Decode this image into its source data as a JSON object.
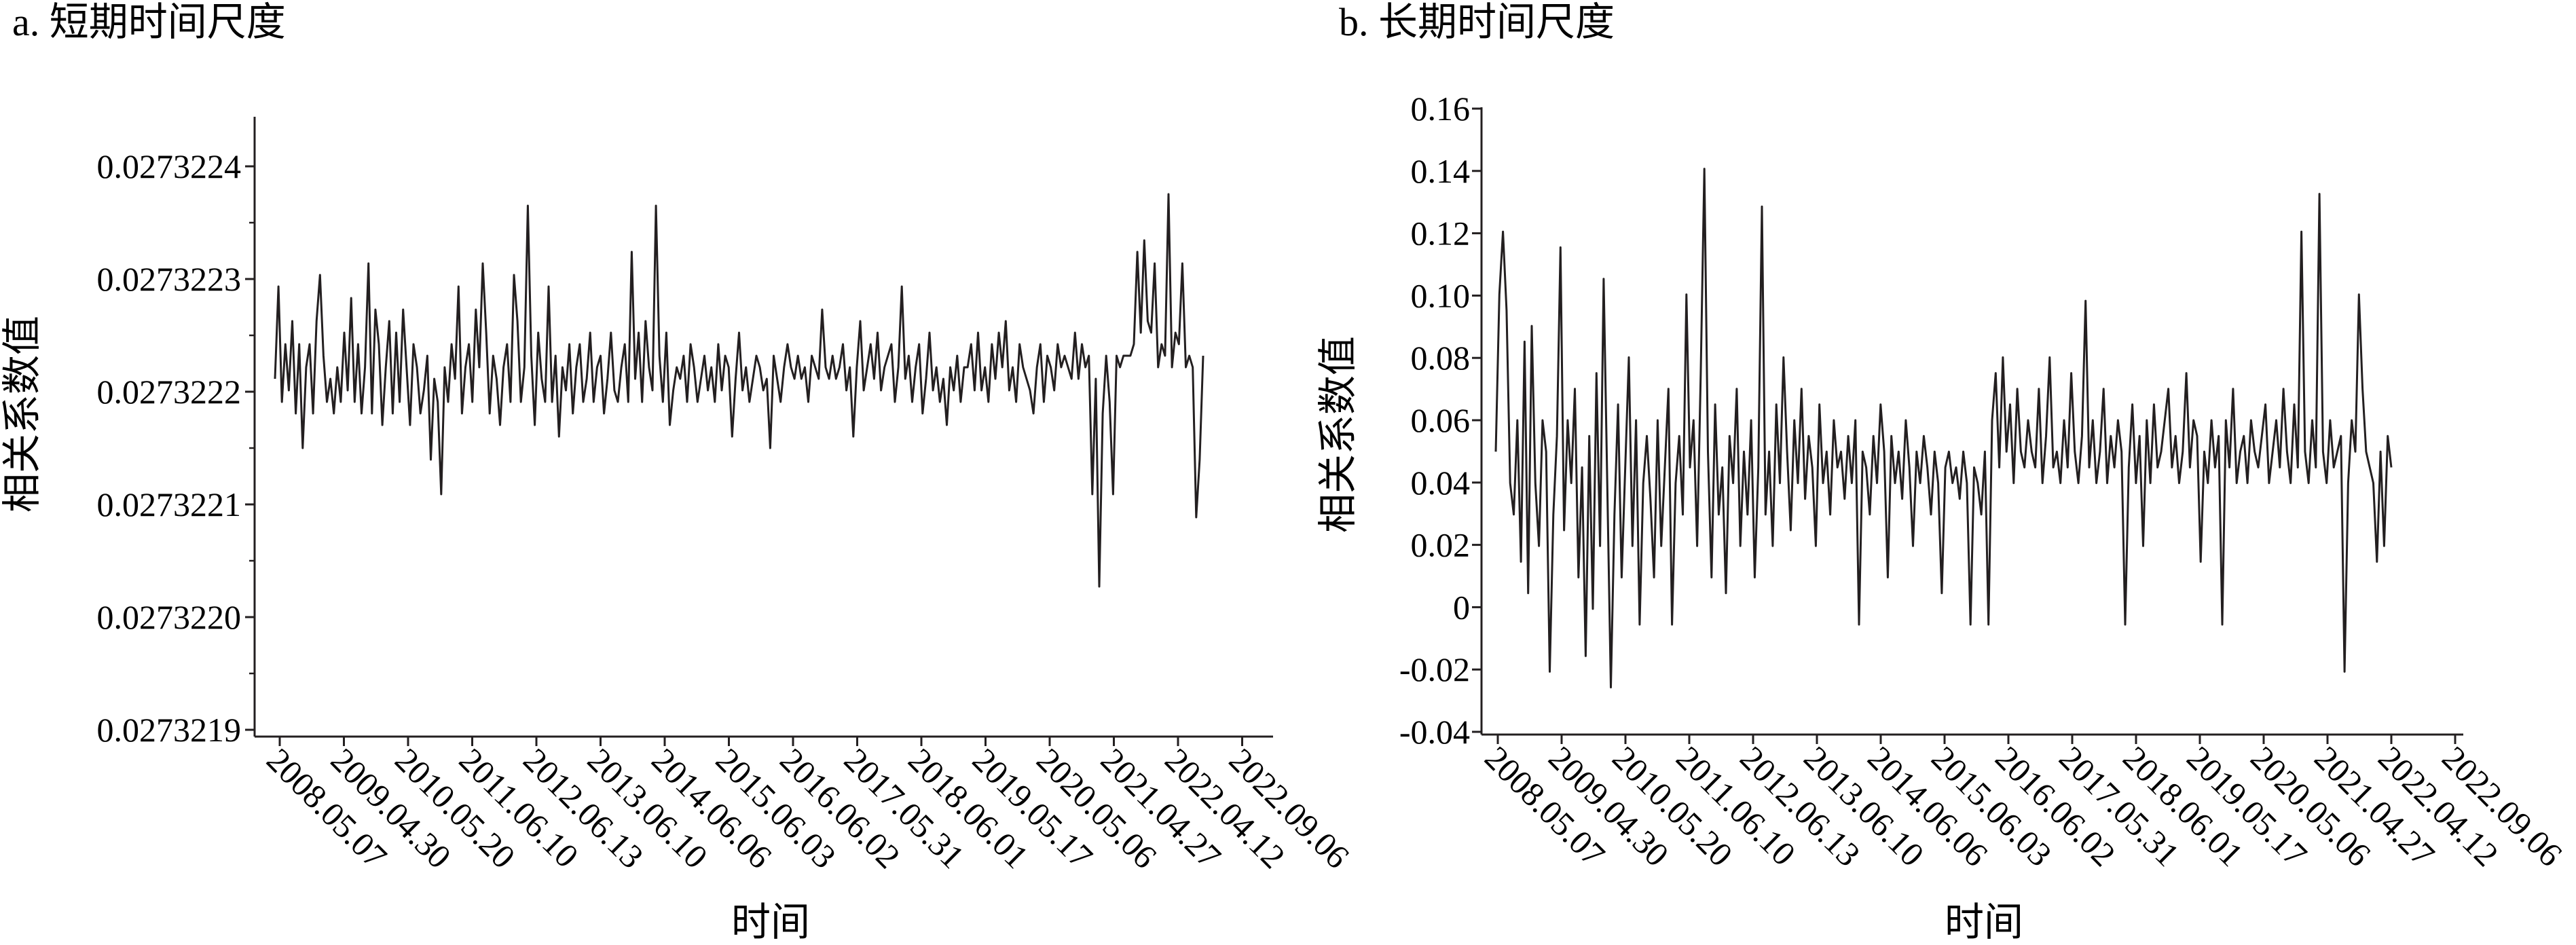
{
  "chart_data": [
    {
      "type": "line",
      "title": "a. 短期时间尺度",
      "xlabel": "时间",
      "ylabel": "相关系数值",
      "ylim": [
        0.0273219,
        0.02732245
      ],
      "yticks": [
        "0.0273219",
        "0.0273220",
        "0.0273221",
        "0.0273222",
        "0.0273223",
        "0.0273224"
      ],
      "x_ticks": [
        "2008.05.07",
        "2009.04.30",
        "2010.05.20",
        "2011.06.10",
        "2012.06.13",
        "2013.06.10",
        "2014.06.06",
        "2015.06.03",
        "2016.06.02",
        "2017.05.31",
        "2018.06.01",
        "2019.05.17",
        "2020.05.06",
        "2021.04.27",
        "2022.04.12",
        "2022.09.06"
      ],
      "grid": false,
      "line_color": "#231f20",
      "series": [
        {
          "values": [
            0.02732221,
            0.02732229,
            0.02732219,
            0.02732224,
            0.0273222,
            0.02732226,
            0.02732218,
            0.02732224,
            0.02732215,
            0.02732222,
            0.02732224,
            0.02732218,
            0.02732226,
            0.0273223,
            0.02732223,
            0.02732219,
            0.02732221,
            0.02732218,
            0.02732222,
            0.02732219,
            0.02732225,
            0.0273222,
            0.02732228,
            0.02732219,
            0.02732224,
            0.02732218,
            0.02732222,
            0.02732231,
            0.02732218,
            0.02732227,
            0.02732224,
            0.02732217,
            0.02732222,
            0.02732226,
            0.02732218,
            0.02732225,
            0.02732219,
            0.02732227,
            0.02732222,
            0.02732217,
            0.02732224,
            0.02732222,
            0.02732218,
            0.0273222,
            0.02732223,
            0.02732214,
            0.02732221,
            0.02732219,
            0.02732211,
            0.02732222,
            0.02732219,
            0.02732224,
            0.02732221,
            0.02732229,
            0.02732218,
            0.02732222,
            0.02732224,
            0.02732219,
            0.02732227,
            0.02732222,
            0.02732231,
            0.02732225,
            0.02732218,
            0.02732223,
            0.02732221,
            0.02732217,
            0.02732222,
            0.02732224,
            0.02732219,
            0.0273223,
            0.02732226,
            0.02732219,
            0.02732222,
            0.02732236,
            0.02732223,
            0.02732217,
            0.02732225,
            0.02732221,
            0.02732219,
            0.02732229,
            0.02732219,
            0.02732223,
            0.02732216,
            0.02732222,
            0.0273222,
            0.02732224,
            0.02732218,
            0.02732222,
            0.02732224,
            0.02732219,
            0.02732221,
            0.02732225,
            0.02732219,
            0.02732222,
            0.02732223,
            0.02732218,
            0.02732221,
            0.02732225,
            0.0273222,
            0.02732219,
            0.02732222,
            0.02732224,
            0.02732219,
            0.02732232,
            0.02732221,
            0.02732225,
            0.02732219,
            0.02732226,
            0.02732222,
            0.0273222,
            0.02732236,
            0.02732223,
            0.02732219,
            0.02732225,
            0.02732217,
            0.0273222,
            0.02732222,
            0.02732221,
            0.02732223,
            0.02732219,
            0.02732224,
            0.02732222,
            0.02732219,
            0.02732221,
            0.02732223,
            0.0273222,
            0.02732222,
            0.02732219,
            0.02732224,
            0.0273222,
            0.02732223,
            0.02732222,
            0.02732216,
            0.02732221,
            0.02732225,
            0.0273222,
            0.02732222,
            0.02732219,
            0.02732221,
            0.02732223,
            0.02732222,
            0.0273222,
            0.02732221,
            0.02732215,
            0.02732223,
            0.02732221,
            0.02732219,
            0.02732222,
            0.02732224,
            0.02732222,
            0.02732221,
            0.02732223,
            0.02732221,
            0.02732222,
            0.02732219,
            0.02732223,
            0.02732222,
            0.02732221,
            0.02732227,
            0.02732222,
            0.02732221,
            0.02732223,
            0.02732221,
            0.02732222,
            0.02732224,
            0.0273222,
            0.02732222,
            0.02732216,
            0.02732222,
            0.02732226,
            0.0273222,
            0.02732222,
            0.02732224,
            0.02732221,
            0.02732225,
            0.0273222,
            0.02732222,
            0.02732223,
            0.02732224,
            0.02732219,
            0.02732222,
            0.02732229,
            0.02732221,
            0.02732223,
            0.02732219,
            0.02732222,
            0.02732224,
            0.02732218,
            0.02732221,
            0.02732225,
            0.0273222,
            0.02732222,
            0.02732219,
            0.02732221,
            0.02732217,
            0.02732222,
            0.0273222,
            0.02732223,
            0.02732219,
            0.02732222,
            0.02732222,
            0.02732224,
            0.0273222,
            0.02732225,
            0.0273222,
            0.02732222,
            0.02732219,
            0.02732224,
            0.02732221,
            0.02732225,
            0.02732222,
            0.02732226,
            0.0273222,
            0.02732222,
            0.02732219,
            0.02732224,
            0.02732222,
            0.02732221,
            0.0273222,
            0.02732218,
            0.02732222,
            0.02732224,
            0.02732219,
            0.02732223,
            0.02732222,
            0.0273222,
            0.02732224,
            0.02732222,
            0.02732223,
            0.02732222,
            0.02732221,
            0.02732225,
            0.02732221,
            0.02732224,
            0.02732222,
            0.02732223,
            0.02732211,
            0.02732221,
            0.02732203,
            0.02732218,
            0.02732223,
            0.02732219,
            0.02732211,
            0.02732223,
            0.02732222,
            0.02732223,
            0.02732223,
            0.02732223,
            0.02732224,
            0.02732232,
            0.02732225,
            0.02732233,
            0.02732226,
            0.02732225,
            0.02732231,
            0.02732222,
            0.02732224,
            0.02732223,
            0.02732237,
            0.02732222,
            0.02732225,
            0.02732224,
            0.02732231,
            0.02732222,
            0.02732223,
            0.02732222,
            0.02732209,
            0.02732214,
            0.02732223
          ]
        }
      ]
    },
    {
      "type": "line",
      "title": "b. 长期时间尺度",
      "xlabel": "时间",
      "ylabel": "相关系数值",
      "ylim": [
        -0.04,
        0.16
      ],
      "yticks": [
        "-0.04",
        "-0.02",
        "0",
        "0.02",
        "0.04",
        "0.06",
        "0.08",
        "0.10",
        "0.12",
        "0.14",
        "0.16"
      ],
      "x_ticks": [
        "2008.05.07",
        "2009.04.30",
        "2010.05.20",
        "2011.06.10",
        "2012.06.13",
        "2013.06.10",
        "2014.06.06",
        "2015.06.03",
        "2016.06.02",
        "2017.05.31",
        "2018.06.01",
        "2019.05.17",
        "2020.05.06",
        "2021.04.27",
        "2022.04.12",
        "2022.09.06"
      ],
      "grid": false,
      "line_color": "#231f20",
      "series": [
        {
          "values": [
            0.05,
            0.1,
            0.12,
            0.095,
            0.04,
            0.03,
            0.06,
            0.015,
            0.085,
            0.005,
            0.09,
            0.04,
            0.02,
            0.06,
            0.05,
            -0.02,
            0.03,
            0.055,
            0.115,
            0.025,
            0.06,
            0.04,
            0.07,
            0.01,
            0.045,
            -0.015,
            0.055,
            0.0,
            0.075,
            0.02,
            0.105,
            0.04,
            -0.025,
            0.03,
            0.065,
            0.01,
            0.045,
            0.08,
            0.02,
            0.06,
            -0.005,
            0.04,
            0.055,
            0.035,
            0.01,
            0.06,
            0.02,
            0.045,
            0.07,
            -0.005,
            0.04,
            0.055,
            0.03,
            0.1,
            0.045,
            0.06,
            0.02,
            0.075,
            0.14,
            0.05,
            0.01,
            0.065,
            0.03,
            0.045,
            0.005,
            0.055,
            0.04,
            0.07,
            0.02,
            0.05,
            0.03,
            0.06,
            0.01,
            0.045,
            0.128,
            0.03,
            0.05,
            0.02,
            0.065,
            0.04,
            0.08,
            0.05,
            0.025,
            0.06,
            0.04,
            0.07,
            0.035,
            0.055,
            0.045,
            0.02,
            0.065,
            0.04,
            0.05,
            0.03,
            0.06,
            0.045,
            0.05,
            0.035,
            0.055,
            0.04,
            0.06,
            -0.005,
            0.05,
            0.045,
            0.03,
            0.055,
            0.04,
            0.065,
            0.05,
            0.01,
            0.055,
            0.04,
            0.05,
            0.035,
            0.06,
            0.045,
            0.02,
            0.05,
            0.04,
            0.055,
            0.045,
            0.03,
            0.05,
            0.04,
            0.005,
            0.045,
            0.05,
            0.04,
            0.045,
            0.035,
            0.05,
            0.04,
            -0.005,
            0.045,
            0.04,
            0.03,
            0.05,
            -0.005,
            0.06,
            0.075,
            0.045,
            0.08,
            0.05,
            0.065,
            0.04,
            0.07,
            0.05,
            0.045,
            0.06,
            0.05,
            0.045,
            0.07,
            0.04,
            0.055,
            0.08,
            0.045,
            0.05,
            0.04,
            0.06,
            0.045,
            0.075,
            0.05,
            0.04,
            0.055,
            0.098,
            0.045,
            0.06,
            0.04,
            0.05,
            0.07,
            0.04,
            0.055,
            0.045,
            0.06,
            0.05,
            -0.005,
            0.045,
            0.065,
            0.04,
            0.055,
            0.02,
            0.06,
            0.04,
            0.065,
            0.045,
            0.05,
            0.06,
            0.07,
            0.045,
            0.055,
            0.04,
            0.05,
            0.075,
            0.045,
            0.06,
            0.055,
            0.015,
            0.05,
            0.04,
            0.06,
            0.045,
            0.055,
            -0.005,
            0.06,
            0.045,
            0.07,
            0.04,
            0.05,
            0.055,
            0.04,
            0.06,
            0.05,
            0.045,
            0.055,
            0.065,
            0.04,
            0.05,
            0.06,
            0.045,
            0.07,
            0.05,
            0.04,
            0.065,
            0.045,
            0.12,
            0.05,
            0.04,
            0.06,
            0.045,
            0.132,
            0.05,
            0.04,
            0.06,
            0.045,
            0.05,
            0.055,
            -0.02,
            0.04,
            0.06,
            0.05,
            0.1,
            0.07,
            0.05,
            0.045,
            0.04,
            0.015,
            0.05,
            0.02,
            0.055,
            0.045
          ]
        }
      ]
    }
  ]
}
